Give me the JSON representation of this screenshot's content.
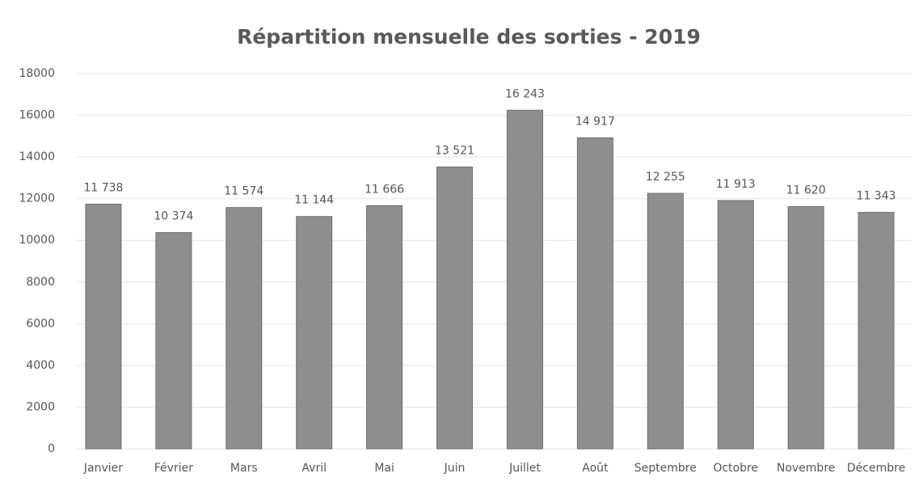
{
  "chart_data": {
    "type": "bar",
    "title": "Répartition mensuelle des sorties - 2019",
    "categories": [
      "Janvier",
      "Février",
      "Mars",
      "Avril",
      "Mai",
      "Juin",
      "Juillet",
      "Août",
      "Septembre",
      "Octobre",
      "Novembre",
      "Décembre"
    ],
    "values": [
      11738,
      10374,
      11574,
      11144,
      11666,
      13521,
      16243,
      14917,
      12255,
      11913,
      11620,
      11343
    ],
    "value_labels": [
      "11 738",
      "10 374",
      "11 574",
      "11 144",
      "11 666",
      "13 521",
      "16 243",
      "14 917",
      "12 255",
      "11 913",
      "11 620",
      "11 343"
    ],
    "color": "#8e8e8e",
    "ylim": [
      0,
      18000
    ],
    "yticks": [
      0,
      2000,
      4000,
      6000,
      8000,
      10000,
      12000,
      14000,
      16000,
      18000
    ],
    "grid": true
  }
}
